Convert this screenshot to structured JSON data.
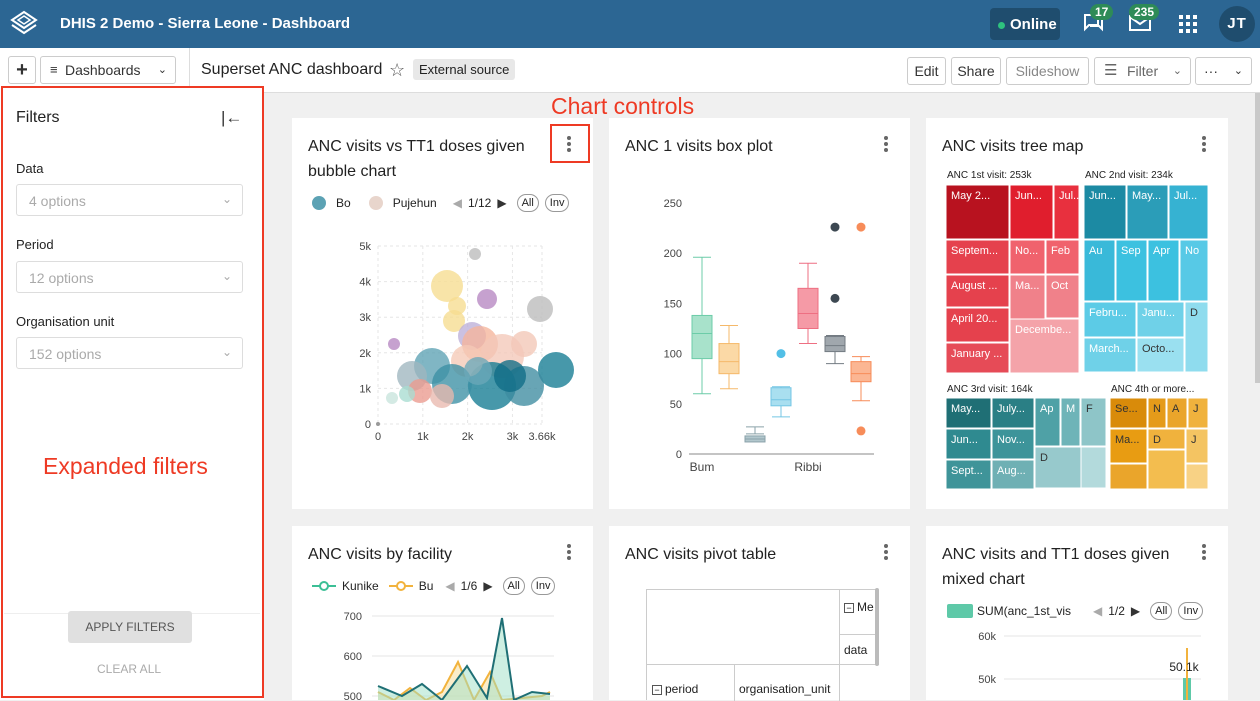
{
  "topbar": {
    "app_title": "DHIS 2 Demo - Sierra Leone - Dashboard",
    "online": "Online",
    "interpretations_count": "17",
    "messages_count": "235",
    "user_initials": "JT"
  },
  "header": {
    "add_label": "+",
    "dashboards_label": "Dashboards",
    "title": "Superset ANC dashboard",
    "tag": "External source",
    "edit": "Edit",
    "share": "Share",
    "slideshow": "Slideshow",
    "filter": "Filter",
    "more": "···"
  },
  "filters": {
    "title": "Filters",
    "items": [
      {
        "label": "Data",
        "placeholder": "4 options"
      },
      {
        "label": "Period",
        "placeholder": "12 options"
      },
      {
        "label": "Organisation unit",
        "placeholder": "152 options"
      }
    ],
    "apply": "APPLY FILTERS",
    "clear": "CLEAR ALL"
  },
  "annotations": {
    "expanded_filters": "Expanded filters",
    "chart_controls": "Chart controls"
  },
  "colors": {
    "accent": "#2c6693",
    "annotation": "#ee3a24"
  },
  "cards": {
    "bubble": {
      "title_line1": "ANC visits vs TT1 doses given",
      "title_line2": "bubble chart",
      "legend": [
        "Bo",
        "Pujehun"
      ],
      "page": "1/12",
      "all": "All",
      "inv": "Inv"
    },
    "box": {
      "title": "ANC 1 visits box plot"
    },
    "tree": {
      "title": "ANC visits tree map",
      "groups": [
        {
          "label": "ANC 1st visit: 253k",
          "cells": [
            "May 2...",
            "Jun...",
            "Jul...",
            "Septem...",
            "No...",
            "Feb",
            "August ...",
            "April 20...",
            "Ma...",
            "Oct",
            "January ...",
            "Decembe..."
          ]
        },
        {
          "label": "ANC 2nd visit: 234k",
          "cells": [
            "Jun...",
            "May...",
            "Jul...",
            "Au",
            "Sep",
            "Apr",
            "No",
            "Febru...",
            "Janu...",
            "D",
            "March...",
            "Octo..."
          ]
        },
        {
          "label": "ANC 3rd visit: 164k",
          "cells": [
            "May...",
            "July...",
            "Ap",
            "M",
            "F",
            "Jun...",
            "Nov...",
            "D",
            "Sept...",
            "Aug..."
          ]
        },
        {
          "label": "ANC 4th or more...",
          "cells": [
            "Se...",
            "N",
            "A",
            "J",
            "Ma...",
            "D",
            "J"
          ]
        }
      ]
    },
    "facility": {
      "title": "ANC visits by facility",
      "legend": [
        "Kunike",
        "Bu"
      ],
      "page": "1/6",
      "all": "All",
      "inv": "Inv"
    },
    "pivot": {
      "title": "ANC visits pivot table",
      "metrics_label": "Me",
      "data_label": "data",
      "period_label": "period",
      "orgunit_label": "organisation_unit"
    },
    "mixed": {
      "title_line1": "ANC visits and TT1 doses given",
      "title_line2": "mixed chart",
      "legend": [
        "SUM(anc_1st_vis"
      ],
      "page": "1/2",
      "all": "All",
      "inv": "Inv",
      "value_label": "50.1k"
    }
  },
  "chart_data": [
    {
      "type": "scatter",
      "title": "ANC visits vs TT1 doses given bubble chart",
      "series": [
        {
          "name": "Bo"
        },
        {
          "name": "Pujehun"
        }
      ],
      "xlim": [
        0,
        3660
      ],
      "ylim": [
        0,
        5000
      ],
      "x_ticks": [
        "0",
        "1k",
        "2k",
        "3k",
        "3.66k"
      ],
      "y_ticks": [
        "0",
        "1k",
        "2k",
        "3k",
        "4k",
        "5k"
      ]
    },
    {
      "type": "box",
      "title": "ANC 1 visits box plot",
      "categories": [
        "Bum",
        "Ribbi"
      ],
      "ylim": [
        0,
        250
      ],
      "y_ticks": [
        "0",
        "50",
        "100",
        "150",
        "200",
        "250"
      ]
    },
    {
      "type": "line",
      "title": "ANC visits by facility",
      "series": [
        {
          "name": "Kunike"
        },
        {
          "name": "Bu"
        }
      ],
      "y_ticks": [
        "500",
        "600",
        "700"
      ]
    },
    {
      "type": "bar",
      "title": "ANC visits and TT1 doses given mixed chart",
      "series": [
        {
          "name": "SUM(anc_1st_vis"
        }
      ],
      "y_ticks": [
        "50k",
        "60k"
      ],
      "data_labels": [
        "50.1k"
      ]
    }
  ]
}
